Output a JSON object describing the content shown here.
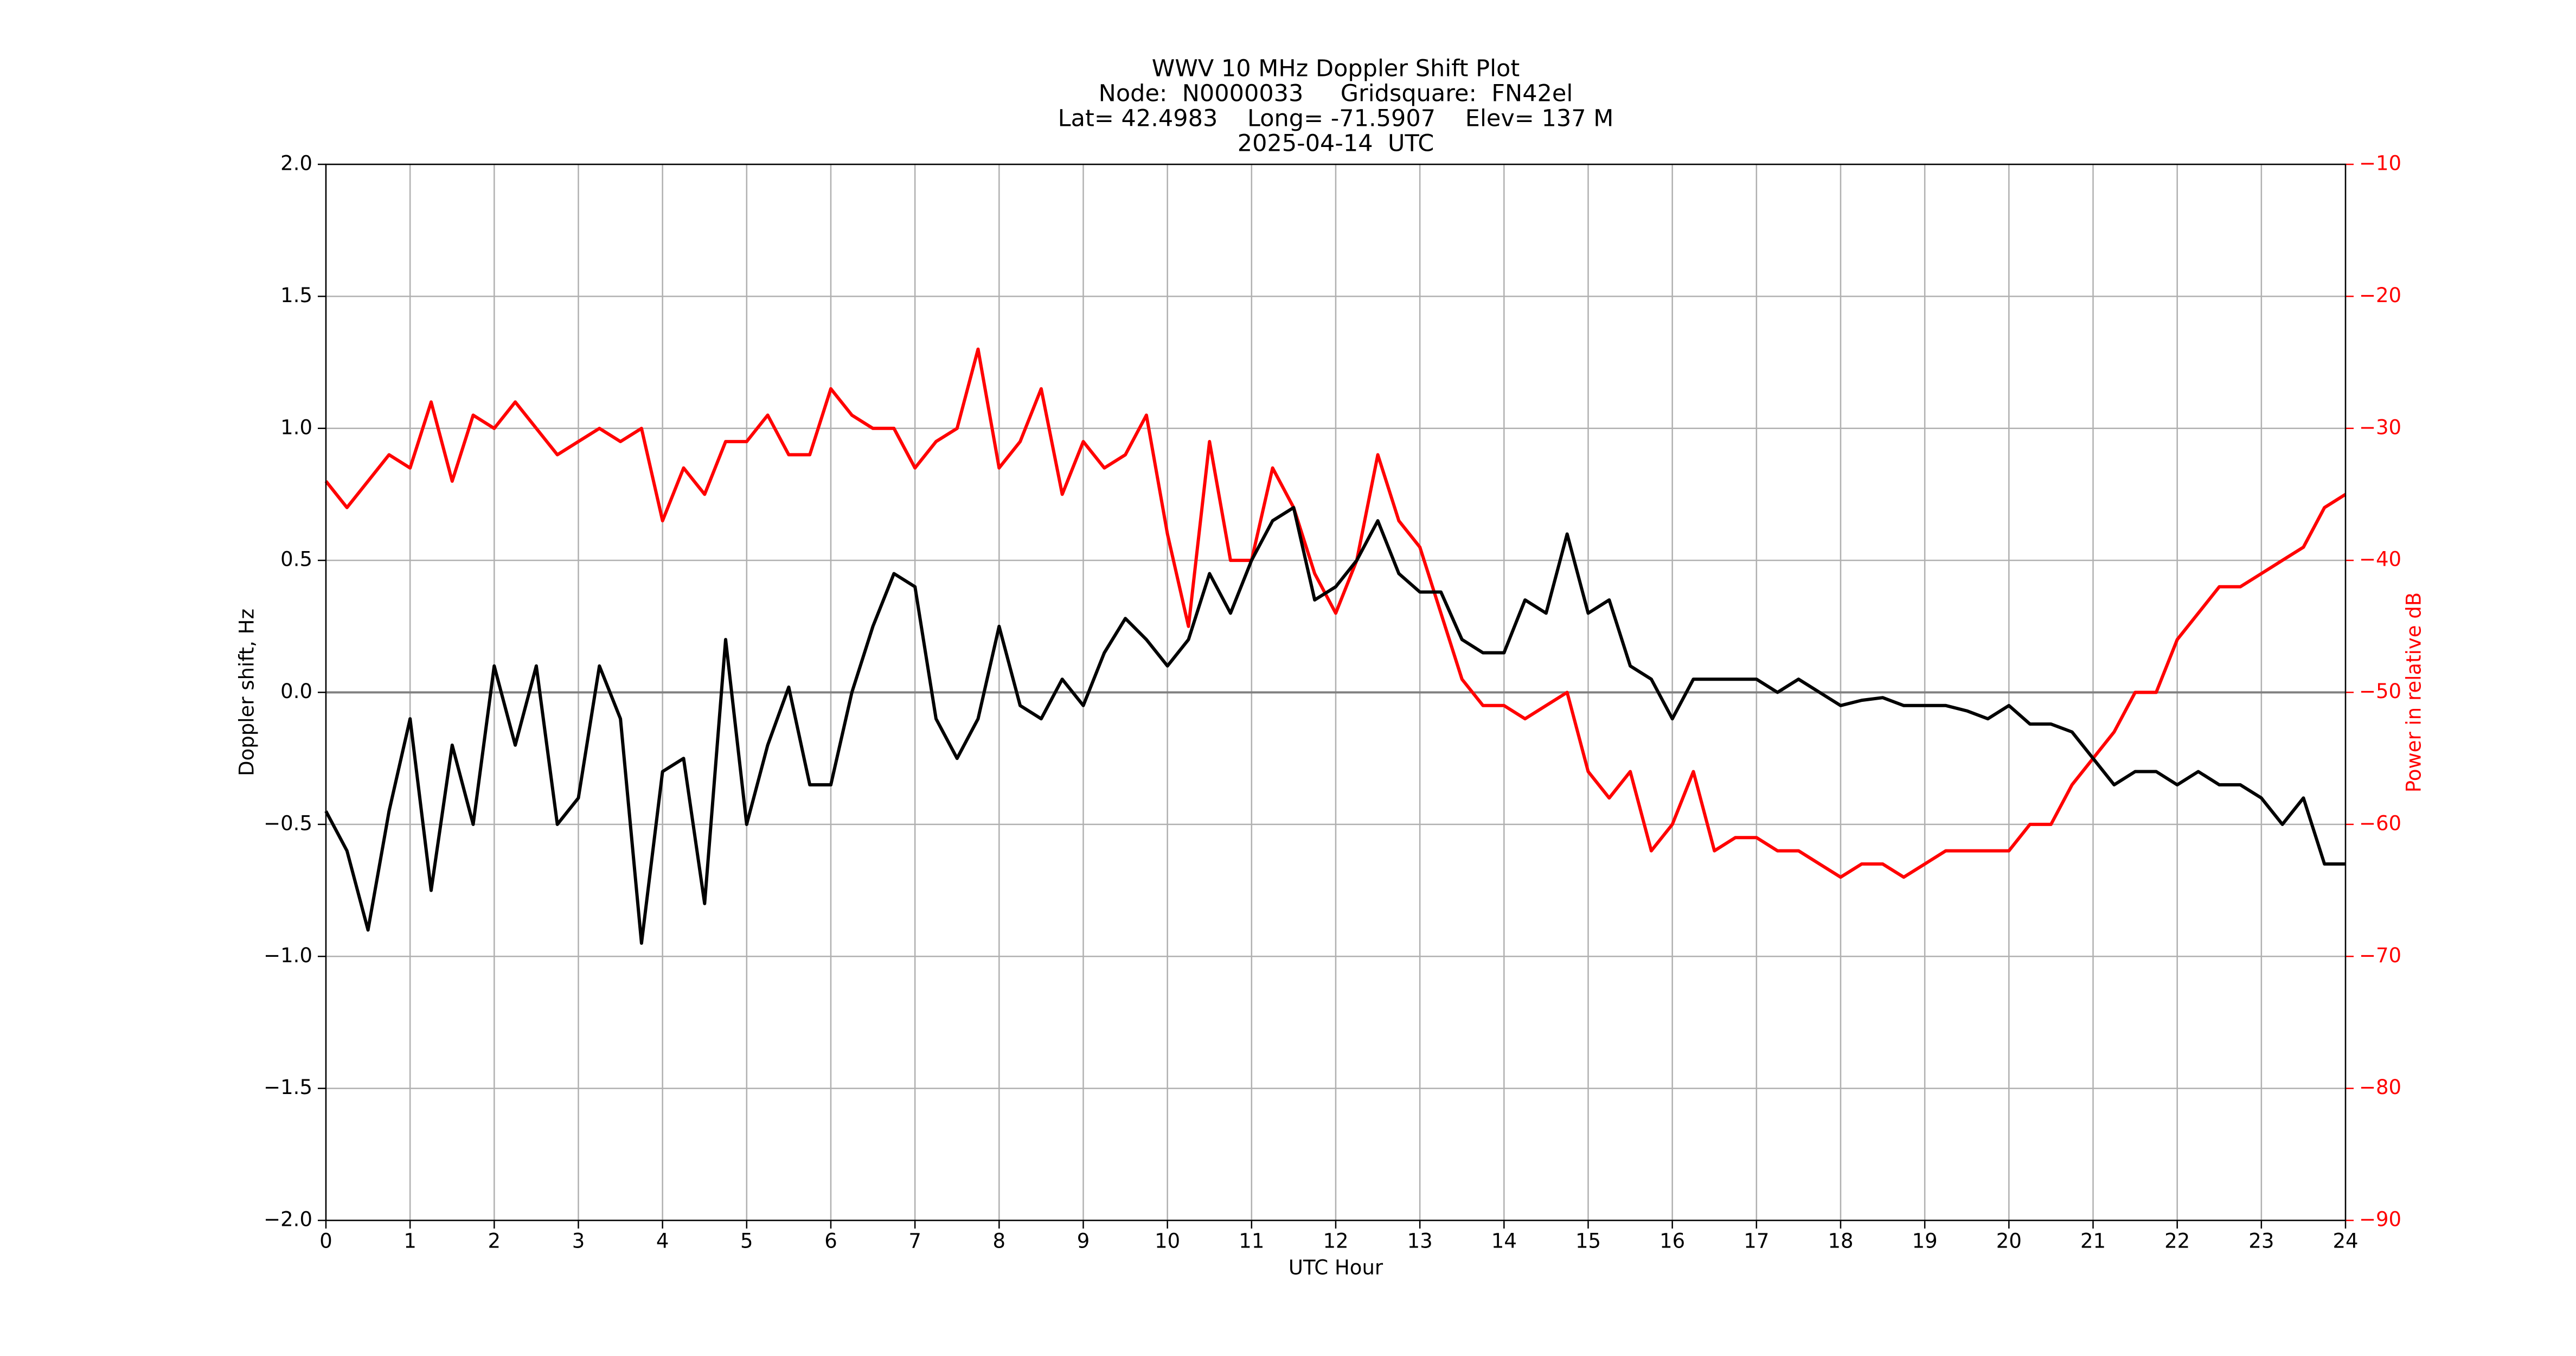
{
  "chart_data": {
    "type": "line",
    "title": [
      "WWV 10 MHz Doppler Shift Plot",
      "Node:  N0000033     Gridsquare:  FN42el",
      "Lat= 42.4983    Long= -71.5907    Elev= 137 M",
      "2025-04-14  UTC"
    ],
    "xlabel": "UTC Hour",
    "ylabel": "Doppler shift, Hz",
    "y2label": "Power in relative dB",
    "y2color": "#ff0000",
    "grid": true,
    "xlim": [
      0,
      24
    ],
    "xticks": [
      0,
      1,
      2,
      3,
      4,
      5,
      6,
      7,
      8,
      9,
      10,
      11,
      12,
      13,
      14,
      15,
      16,
      17,
      18,
      19,
      20,
      21,
      22,
      23,
      24
    ],
    "ylim": [
      -2,
      2
    ],
    "yticks": [
      {
        "value": -2,
        "label": "−2.0"
      },
      {
        "value": -1.5,
        "label": "−1.5"
      },
      {
        "value": -1,
        "label": "−1.0"
      },
      {
        "value": -0.5,
        "label": "−0.5"
      },
      {
        "value": 0,
        "label": "0.0"
      },
      {
        "value": 0.5,
        "label": "0.5"
      },
      {
        "value": 1,
        "label": "1.0"
      },
      {
        "value": 1.5,
        "label": "1.5"
      },
      {
        "value": 2,
        "label": "2.0"
      }
    ],
    "y2lim": [
      -90,
      -10
    ],
    "y2ticks": [
      {
        "value": -90,
        "label": "−90"
      },
      {
        "value": -80,
        "label": "−80"
      },
      {
        "value": -70,
        "label": "−70"
      },
      {
        "value": -60,
        "label": "−60"
      },
      {
        "value": -50,
        "label": "−50"
      },
      {
        "value": -40,
        "label": "−40"
      },
      {
        "value": -30,
        "label": "−30"
      },
      {
        "value": -20,
        "label": "−20"
      },
      {
        "value": -10,
        "label": "−10"
      }
    ],
    "x": [
      0,
      0.25,
      0.5,
      0.75,
      1,
      1.25,
      1.5,
      1.75,
      2,
      2.25,
      2.5,
      2.75,
      3,
      3.25,
      3.5,
      3.75,
      4,
      4.25,
      4.5,
      4.75,
      5,
      5.25,
      5.5,
      5.75,
      6,
      6.25,
      6.5,
      6.75,
      7,
      7.25,
      7.5,
      7.75,
      8,
      8.25,
      8.5,
      8.75,
      9,
      9.25,
      9.5,
      9.75,
      10,
      10.25,
      10.5,
      10.75,
      11,
      11.25,
      11.5,
      11.75,
      12,
      12.25,
      12.5,
      12.75,
      13,
      13.25,
      13.5,
      13.75,
      14,
      14.25,
      14.5,
      14.75,
      15,
      15.25,
      15.5,
      15.75,
      16,
      16.25,
      16.5,
      16.75,
      17,
      17.25,
      17.5,
      17.75,
      18,
      18.25,
      18.5,
      18.75,
      19,
      19.25,
      19.5,
      19.75,
      20,
      20.25,
      20.5,
      20.75,
      21,
      21.25,
      21.5,
      21.75,
      22,
      22.25,
      22.5,
      22.75,
      23,
      23.25,
      23.5,
      23.75,
      24
    ],
    "series": [
      {
        "color": "#ff0000",
        "axis": "y2",
        "values": [
          -34,
          -36,
          -34,
          -32,
          -33,
          -28,
          -34,
          -29,
          -30,
          -28,
          -30,
          -32,
          -31,
          -30,
          -31,
          -30,
          -37,
          -33,
          -35,
          -31,
          -31,
          -29,
          -32,
          -32,
          -27,
          -29,
          -30,
          -30,
          -33,
          -31,
          -30,
          -24,
          -33,
          -31,
          -27,
          -35,
          -31,
          -33,
          -32,
          -29,
          -38,
          -45,
          -31,
          -40,
          -40,
          -33,
          -36,
          -41,
          -44,
          -40,
          -32,
          -37,
          -39,
          -44,
          -49,
          -51,
          -51,
          -52,
          -51,
          -50,
          -56,
          -58,
          -56,
          -62,
          -60,
          -56,
          -62,
          -61,
          -61,
          -62,
          -62,
          -63,
          -64,
          -63,
          -63,
          -64,
          -63,
          -62,
          -62,
          -62,
          -62,
          -60,
          -60,
          -57,
          -55,
          -53,
          -50,
          -50,
          -46,
          -44,
          -42,
          -42,
          -41,
          -40,
          -39,
          -36,
          -35
        ]
      },
      {
        "color": "#000000",
        "values": [
          -0.45,
          -0.6,
          -0.9,
          -0.45,
          -0.1,
          -0.75,
          -0.2,
          -0.5,
          0.1,
          -0.2,
          0.1,
          -0.5,
          -0.4,
          0.1,
          -0.1,
          -0.95,
          -0.3,
          -0.25,
          -0.8,
          0.2,
          -0.5,
          -0.2,
          0.02,
          -0.35,
          -0.35,
          0.0,
          0.25,
          0.45,
          0.4,
          -0.1,
          -0.25,
          -0.1,
          0.25,
          -0.05,
          -0.1,
          0.05,
          -0.05,
          0.15,
          0.28,
          0.2,
          0.1,
          0.2,
          0.45,
          0.3,
          0.5,
          0.65,
          0.7,
          0.35,
          0.4,
          0.5,
          0.65,
          0.45,
          0.38,
          0.38,
          0.2,
          0.15,
          0.15,
          0.35,
          0.3,
          0.6,
          0.3,
          0.35,
          0.1,
          0.05,
          -0.1,
          0.05,
          0.05,
          0.05,
          0.05,
          0.0,
          0.05,
          0.0,
          -0.05,
          -0.03,
          -0.02,
          -0.05,
          -0.05,
          -0.05,
          -0.07,
          -0.1,
          -0.05,
          -0.12,
          -0.12,
          -0.15,
          -0.25,
          -0.35,
          -0.3,
          -0.3,
          -0.35,
          -0.3,
          -0.35,
          -0.35,
          -0.4,
          -0.5,
          -0.4,
          -0.65,
          -0.65
        ]
      }
    ]
  }
}
